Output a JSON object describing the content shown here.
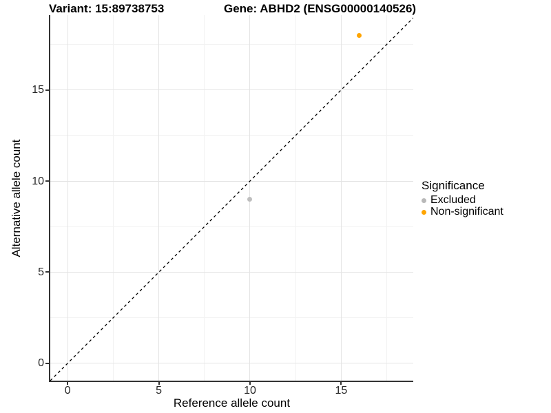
{
  "chart_data": {
    "type": "scatter",
    "titles": {
      "left": "Variant: 15:89738753",
      "right": "Gene: ABHD2 (ENSG00000140526)"
    },
    "xlabel": "Reference allele count",
    "ylabel": "Alternative allele count",
    "xlim": [
      -0.95,
      18.95
    ],
    "ylim": [
      -0.95,
      19.1
    ],
    "x_ticks": [
      0,
      5,
      10,
      15
    ],
    "y_ticks": [
      0,
      5,
      10,
      15
    ],
    "x_minor_ticks": [
      2.5,
      7.5,
      12.5,
      17.5
    ],
    "y_minor_ticks": [
      2.5,
      7.5,
      12.5,
      17.5
    ],
    "grid": true,
    "identity_line": {
      "slope": 1,
      "intercept": 0,
      "style": "dashed",
      "color": "#000000"
    },
    "points": [
      {
        "x": 10,
        "y": 9,
        "series": "Excluded",
        "color": "#bebebe"
      },
      {
        "x": 16,
        "y": 18,
        "series": "Non-significant",
        "color": "#ffa500"
      }
    ],
    "legend": {
      "title": "Significance",
      "position": "right",
      "items": [
        {
          "label": "Excluded",
          "color": "#b8b8b8"
        },
        {
          "label": "Non-significant",
          "color": "#ffa500"
        }
      ]
    },
    "colors": {
      "axis": "#333333",
      "grid_major": "#e4e4e4",
      "grid_minor": "#f2f2f2"
    }
  }
}
